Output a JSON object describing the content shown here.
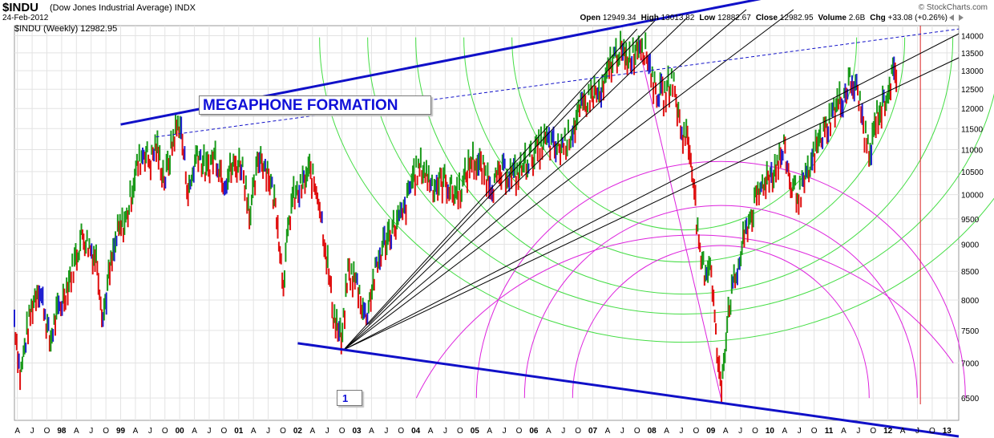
{
  "header": {
    "symbol": "$INDU",
    "name": "(Dow Jones Industrial Average)  INDX",
    "date": "24-Feb-2012",
    "brand": "© StockCharts.com",
    "legend": "$INDU (Weekly) 12982.95",
    "ohlc": [
      {
        "label": "Open",
        "value": "12949.34"
      },
      {
        "label": "High",
        "value": "13013.82"
      },
      {
        "label": "Low",
        "value": "12882.67"
      },
      {
        "label": "Close",
        "value": "12982.95"
      },
      {
        "label": "Volume",
        "value": "2.6B"
      },
      {
        "label": "Chg",
        "value": "+33.08 (+0.26%)"
      }
    ]
  },
  "colors": {
    "up": "#1a9a1a",
    "down": "#e01010",
    "neutral": "#2020d0",
    "channel": "#1010c8",
    "fan": "#000000",
    "green_arc": "#44dd44",
    "magenta_arc": "#dd22dd",
    "vline": "#dd2222",
    "grid": "#e3e3e3"
  },
  "chart_data": {
    "type": "bar",
    "title": "$INDU (Weekly) 12982.95",
    "scale": "log",
    "ylim": [
      6200,
      14300
    ],
    "y_ticks": [
      6500,
      7000,
      7500,
      8000,
      8500,
      9000,
      9500,
      10000,
      10500,
      11000,
      11500,
      12000,
      12500,
      13000,
      13500,
      14000
    ],
    "x_range": [
      1997.2,
      2013.2
    ],
    "x_labels": [
      {
        "t": 1997.25,
        "label": "A"
      },
      {
        "t": 1997.5,
        "label": "J"
      },
      {
        "t": 1997.75,
        "label": "O"
      },
      {
        "t": 1998.0,
        "label": "98"
      },
      {
        "t": 1998.25,
        "label": "A"
      },
      {
        "t": 1998.5,
        "label": "J"
      },
      {
        "t": 1998.75,
        "label": "O"
      },
      {
        "t": 1999.0,
        "label": "99"
      },
      {
        "t": 1999.25,
        "label": "A"
      },
      {
        "t": 1999.5,
        "label": "J"
      },
      {
        "t": 1999.75,
        "label": "O"
      },
      {
        "t": 2000.0,
        "label": "00"
      },
      {
        "t": 2000.25,
        "label": "A"
      },
      {
        "t": 2000.5,
        "label": "J"
      },
      {
        "t": 2000.75,
        "label": "O"
      },
      {
        "t": 2001.0,
        "label": "01"
      },
      {
        "t": 2001.25,
        "label": "A"
      },
      {
        "t": 2001.5,
        "label": "J"
      },
      {
        "t": 2001.75,
        "label": "O"
      },
      {
        "t": 2002.0,
        "label": "02"
      },
      {
        "t": 2002.25,
        "label": "A"
      },
      {
        "t": 2002.5,
        "label": "J"
      },
      {
        "t": 2002.75,
        "label": "O"
      },
      {
        "t": 2003.0,
        "label": "03"
      },
      {
        "t": 2003.25,
        "label": "A"
      },
      {
        "t": 2003.5,
        "label": "J"
      },
      {
        "t": 2003.75,
        "label": "O"
      },
      {
        "t": 2004.0,
        "label": "04"
      },
      {
        "t": 2004.25,
        "label": "A"
      },
      {
        "t": 2004.5,
        "label": "J"
      },
      {
        "t": 2004.75,
        "label": "O"
      },
      {
        "t": 2005.0,
        "label": "05"
      },
      {
        "t": 2005.25,
        "label": "A"
      },
      {
        "t": 2005.5,
        "label": "J"
      },
      {
        "t": 2005.75,
        "label": "O"
      },
      {
        "t": 2006.0,
        "label": "06"
      },
      {
        "t": 2006.25,
        "label": "A"
      },
      {
        "t": 2006.5,
        "label": "J"
      },
      {
        "t": 2006.75,
        "label": "O"
      },
      {
        "t": 2007.0,
        "label": "07"
      },
      {
        "t": 2007.25,
        "label": "A"
      },
      {
        "t": 2007.5,
        "label": "J"
      },
      {
        "t": 2007.75,
        "label": "O"
      },
      {
        "t": 2008.0,
        "label": "08"
      },
      {
        "t": 2008.25,
        "label": "A"
      },
      {
        "t": 2008.5,
        "label": "J"
      },
      {
        "t": 2008.75,
        "label": "O"
      },
      {
        "t": 2009.0,
        "label": "09"
      },
      {
        "t": 2009.25,
        "label": "A"
      },
      {
        "t": 2009.5,
        "label": "J"
      },
      {
        "t": 2009.75,
        "label": "O"
      },
      {
        "t": 2010.0,
        "label": "10"
      },
      {
        "t": 2010.25,
        "label": "A"
      },
      {
        "t": 2010.5,
        "label": "J"
      },
      {
        "t": 2010.75,
        "label": "O"
      },
      {
        "t": 2011.0,
        "label": "11"
      },
      {
        "t": 2011.25,
        "label": "A"
      },
      {
        "t": 2011.5,
        "label": "J"
      },
      {
        "t": 2011.75,
        "label": "O"
      },
      {
        "t": 2012.0,
        "label": "12"
      },
      {
        "t": 2012.25,
        "label": "A"
      },
      {
        "t": 2012.5,
        "label": "J"
      },
      {
        "t": 2012.75,
        "label": "O"
      },
      {
        "t": 2013.0,
        "label": "13"
      }
    ],
    "series": [
      {
        "values": [
          [
            1997.2,
            7700
          ],
          [
            1997.3,
            6800
          ],
          [
            1997.4,
            7400
          ],
          [
            1997.5,
            7900
          ],
          [
            1997.6,
            8250
          ],
          [
            1997.7,
            7900
          ],
          [
            1997.8,
            7300
          ],
          [
            1997.9,
            7700
          ],
          [
            1998.0,
            7950
          ],
          [
            1998.2,
            8600
          ],
          [
            1998.35,
            9200
          ],
          [
            1998.5,
            8900
          ],
          [
            1998.6,
            8700
          ],
          [
            1998.7,
            7700
          ],
          [
            1998.8,
            8400
          ],
          [
            1998.95,
            9200
          ],
          [
            1999.1,
            9500
          ],
          [
            1999.25,
            10500
          ],
          [
            1999.4,
            11000
          ],
          [
            1999.5,
            10700
          ],
          [
            1999.6,
            11100
          ],
          [
            1999.75,
            10300
          ],
          [
            1999.9,
            11300
          ],
          [
            2000.0,
            11700
          ],
          [
            2000.15,
            10000
          ],
          [
            2000.3,
            11000
          ],
          [
            2000.45,
            10500
          ],
          [
            2000.6,
            10900
          ],
          [
            2000.75,
            10300
          ],
          [
            2000.9,
            10600
          ],
          [
            2001.05,
            10700
          ],
          [
            2001.2,
            9600
          ],
          [
            2001.35,
            10900
          ],
          [
            2001.5,
            10500
          ],
          [
            2001.65,
            9600
          ],
          [
            2001.75,
            8300
          ],
          [
            2001.9,
            9900
          ],
          [
            2002.0,
            10000
          ],
          [
            2002.2,
            10500
          ],
          [
            2002.35,
            10000
          ],
          [
            2002.5,
            8700
          ],
          [
            2002.6,
            7800
          ],
          [
            2002.75,
            7300
          ],
          [
            2002.85,
            8500
          ],
          [
            2003.0,
            8300
          ],
          [
            2003.15,
            7700
          ],
          [
            2003.3,
            8400
          ],
          [
            2003.45,
            9000
          ],
          [
            2003.6,
            9300
          ],
          [
            2003.8,
            9600
          ],
          [
            2003.95,
            10400
          ],
          [
            2004.1,
            10600
          ],
          [
            2004.3,
            10200
          ],
          [
            2004.5,
            10300
          ],
          [
            2004.65,
            10000
          ],
          [
            2004.8,
            10200
          ],
          [
            2004.95,
            10800
          ],
          [
            2005.15,
            10500
          ],
          [
            2005.3,
            10200
          ],
          [
            2005.5,
            10500
          ],
          [
            2005.7,
            10400
          ],
          [
            2005.85,
            10700
          ],
          [
            2006.0,
            10900
          ],
          [
            2006.2,
            11200
          ],
          [
            2006.4,
            11000
          ],
          [
            2006.55,
            11200
          ],
          [
            2006.7,
            11600
          ],
          [
            2006.85,
            12100
          ],
          [
            2007.0,
            12400
          ],
          [
            2007.15,
            12300
          ],
          [
            2007.3,
            13200
          ],
          [
            2007.45,
            13600
          ],
          [
            2007.55,
            13300
          ],
          [
            2007.7,
            13500
          ],
          [
            2007.8,
            13900
          ],
          [
            2007.95,
            13300
          ],
          [
            2008.05,
            12500
          ],
          [
            2008.2,
            12300
          ],
          [
            2008.35,
            12800
          ],
          [
            2008.5,
            11400
          ],
          [
            2008.6,
            11300
          ],
          [
            2008.7,
            10500
          ],
          [
            2008.8,
            8800
          ],
          [
            2008.9,
            8500
          ],
          [
            2009.0,
            8700
          ],
          [
            2009.1,
            7200
          ],
          [
            2009.17,
            6600
          ],
          [
            2009.3,
            7900
          ],
          [
            2009.45,
            8500
          ],
          [
            2009.6,
            9300
          ],
          [
            2009.75,
            9800
          ],
          [
            2009.9,
            10300
          ],
          [
            2010.05,
            10500
          ],
          [
            2010.25,
            11000
          ],
          [
            2010.35,
            10200
          ],
          [
            2010.5,
            10000
          ],
          [
            2010.65,
            10400
          ],
          [
            2010.8,
            11100
          ],
          [
            2010.95,
            11500
          ],
          [
            2011.1,
            12000
          ],
          [
            2011.25,
            12300
          ],
          [
            2011.35,
            12700
          ],
          [
            2011.5,
            12400
          ],
          [
            2011.6,
            11400
          ],
          [
            2011.7,
            10800
          ],
          [
            2011.8,
            11800
          ],
          [
            2011.9,
            12000
          ],
          [
            2012.0,
            12500
          ],
          [
            2012.1,
            12900
          ],
          [
            2012.15,
            12983
          ]
        ]
      }
    ]
  },
  "annotations": {
    "megaphone_label": "MEGAPHONE FORMATION",
    "box_label": "1"
  }
}
